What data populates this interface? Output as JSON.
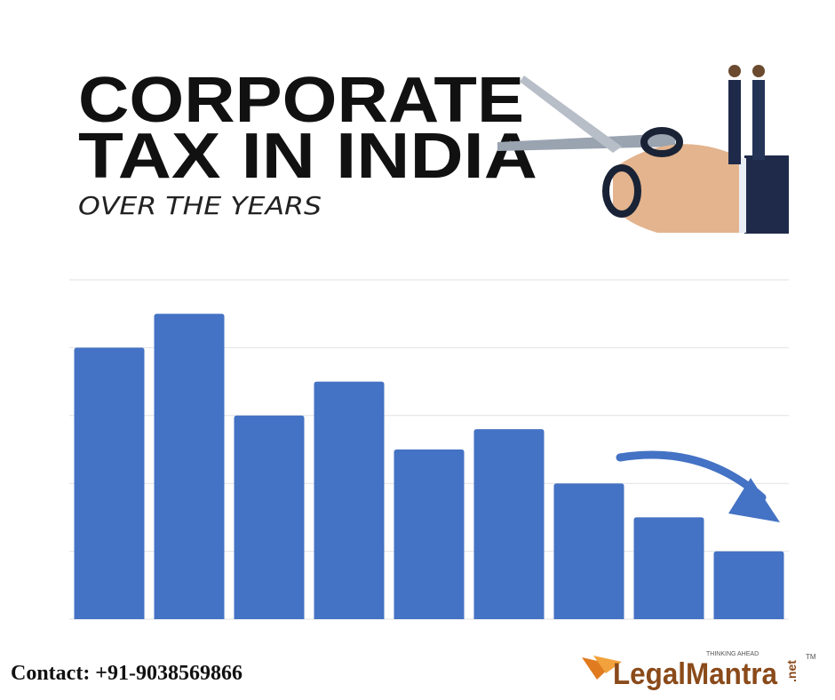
{
  "header": {
    "title_line_1": "CORPORATE",
    "title_line_2": "TAX IN INDIA",
    "subtitle": "OVER THE YEARS"
  },
  "chart_data": {
    "type": "bar",
    "categories": [
      null,
      null,
      null,
      null,
      null,
      null,
      null,
      null,
      null
    ],
    "values": [
      4,
      4.5,
      3,
      3.5,
      2.5,
      2.8,
      2,
      1.5,
      1
    ],
    "color": "#4472c4",
    "ylim": [
      0,
      5
    ],
    "yticks": [
      0,
      1,
      2,
      3,
      4,
      5
    ],
    "grid": true,
    "tick_labels": false
  },
  "footer": {
    "contact": "Contact: +91-9038569866",
    "logo": "LegalMantra",
    "logo_suffix": ".net",
    "logo_tagline": "THINKING AHEAD",
    "trademark": "TM"
  }
}
